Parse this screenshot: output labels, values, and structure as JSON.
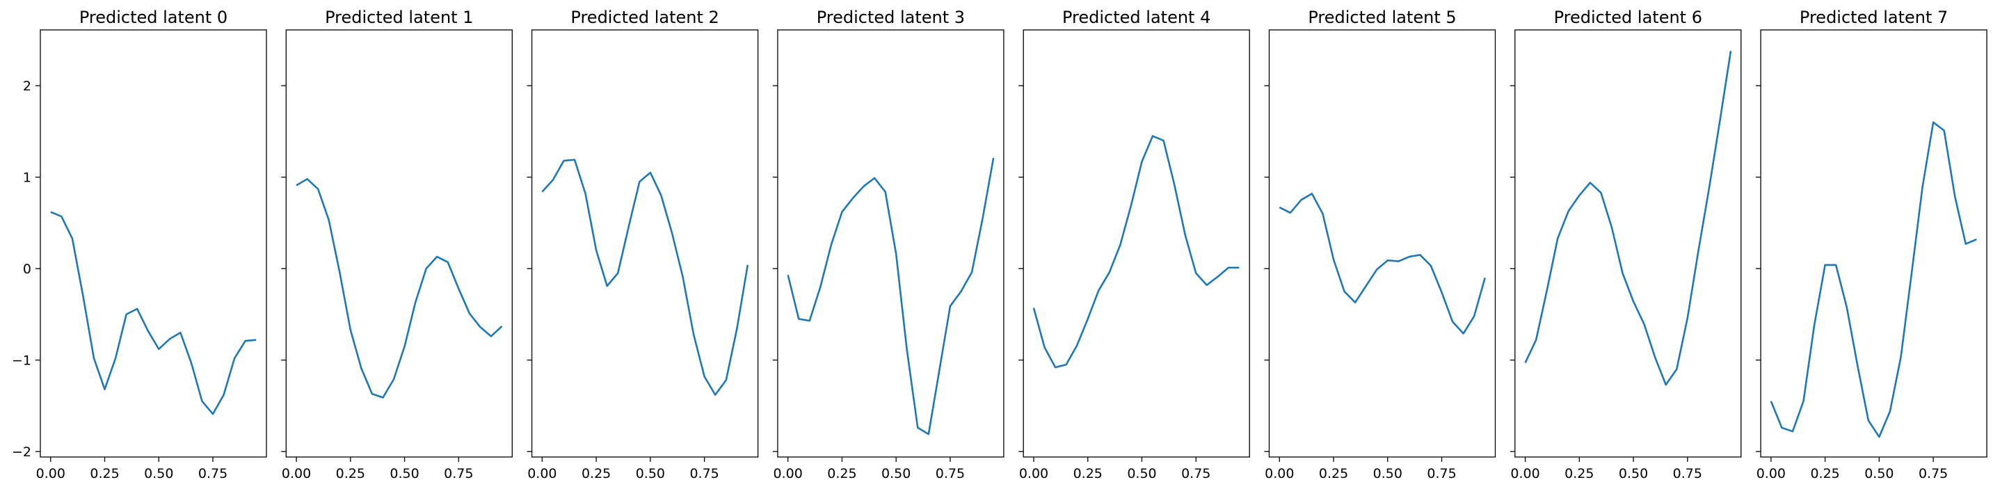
{
  "chart_data": {
    "type": "line",
    "layout": "1x8 subplots, shared y-axis",
    "line_color": "#1f77b4",
    "x": [
      0.0,
      0.05,
      0.1,
      0.15,
      0.2,
      0.25,
      0.3,
      0.35,
      0.4,
      0.45,
      0.5,
      0.55,
      0.6,
      0.65,
      0.7,
      0.75,
      0.8,
      0.85,
      0.9,
      0.95
    ],
    "xlim": [
      -0.0475,
      0.9975
    ],
    "ylim": [
      -2.06,
      2.61
    ],
    "x_ticks": [
      0.0,
      0.25,
      0.5,
      0.75
    ],
    "x_tick_labels": [
      "0.00",
      "0.25",
      "0.50",
      "0.75"
    ],
    "y_ticks": [
      -2,
      -1,
      0,
      1,
      2
    ],
    "y_tick_labels": [
      "−2",
      "−1",
      "0",
      "1",
      "2"
    ],
    "grid": false,
    "subplots": [
      {
        "title": "Predicted latent 0",
        "values": [
          0.62,
          0.57,
          0.33,
          -0.3,
          -0.98,
          -1.32,
          -0.98,
          -0.5,
          -0.44,
          -0.68,
          -0.88,
          -0.77,
          -0.7,
          -1.03,
          -1.45,
          -1.59,
          -1.38,
          -0.98,
          -0.79,
          -0.78
        ]
      },
      {
        "title": "Predicted latent 1",
        "values": [
          0.91,
          0.98,
          0.87,
          0.53,
          -0.04,
          -0.67,
          -1.09,
          -1.37,
          -1.41,
          -1.21,
          -0.85,
          -0.37,
          0.0,
          0.13,
          0.07,
          -0.22,
          -0.49,
          -0.64,
          -0.74,
          -0.63
        ]
      },
      {
        "title": "Predicted latent 2",
        "values": [
          0.84,
          0.97,
          1.18,
          1.19,
          0.82,
          0.2,
          -0.19,
          -0.05,
          0.46,
          0.95,
          1.05,
          0.8,
          0.39,
          -0.09,
          -0.72,
          -1.18,
          -1.38,
          -1.22,
          -0.66,
          0.04
        ]
      },
      {
        "title": "Predicted latent 3",
        "values": [
          -0.07,
          -0.55,
          -0.57,
          -0.2,
          0.26,
          0.62,
          0.77,
          0.9,
          0.99,
          0.84,
          0.16,
          -0.89,
          -1.74,
          -1.81,
          -1.11,
          -0.41,
          -0.25,
          -0.04,
          0.55,
          1.21
        ]
      },
      {
        "title": "Predicted latent 4",
        "values": [
          -0.43,
          -0.86,
          -1.08,
          -1.05,
          -0.84,
          -0.55,
          -0.24,
          -0.04,
          0.26,
          0.69,
          1.17,
          1.45,
          1.4,
          0.92,
          0.37,
          -0.05,
          -0.18,
          -0.09,
          0.01,
          0.01
        ]
      },
      {
        "title": "Predicted latent 5",
        "values": [
          0.67,
          0.61,
          0.75,
          0.82,
          0.6,
          0.1,
          -0.25,
          -0.37,
          -0.19,
          -0.01,
          0.09,
          0.08,
          0.13,
          0.15,
          0.03,
          -0.26,
          -0.58,
          -0.71,
          -0.52,
          -0.1
        ]
      },
      {
        "title": "Predicted latent 6",
        "values": [
          -1.03,
          -0.78,
          -0.24,
          0.33,
          0.63,
          0.8,
          0.94,
          0.83,
          0.45,
          -0.05,
          -0.36,
          -0.61,
          -0.97,
          -1.27,
          -1.1,
          -0.54,
          0.19,
          0.88,
          1.62,
          2.38
        ]
      },
      {
        "title": "Predicted latent 7",
        "values": [
          -1.45,
          -1.74,
          -1.78,
          -1.45,
          -0.62,
          0.04,
          0.04,
          -0.42,
          -1.06,
          -1.66,
          -1.84,
          -1.56,
          -0.97,
          -0.05,
          0.89,
          1.6,
          1.51,
          0.79,
          0.27,
          0.32
        ]
      }
    ]
  }
}
